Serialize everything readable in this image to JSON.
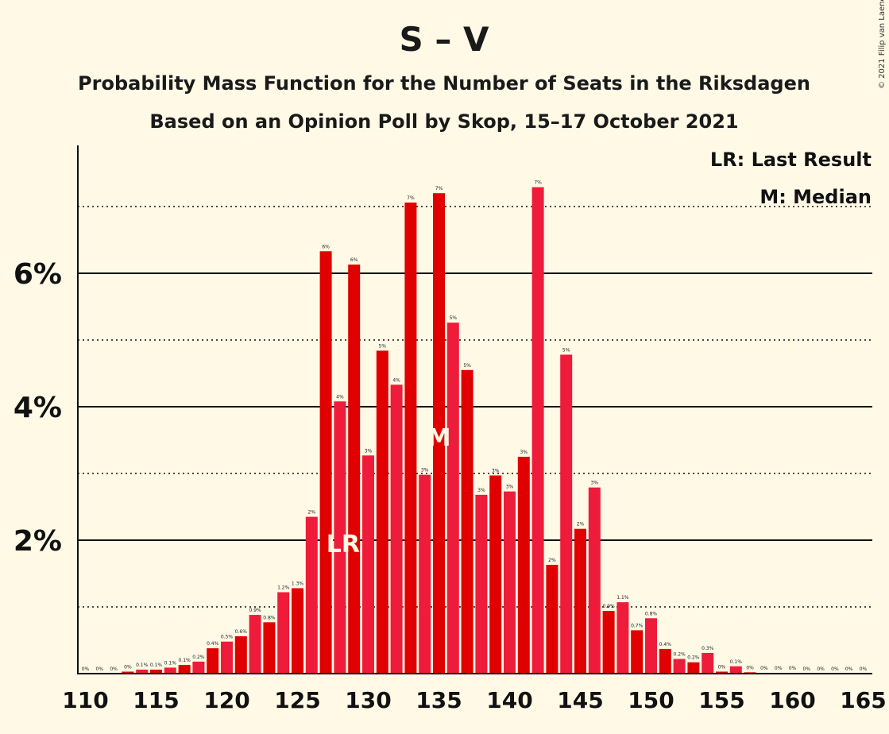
{
  "title": "S – V",
  "subtitle1": "Probability Mass Function for the Number of Seats in the Riksdagen",
  "subtitle2": "Based on an Opinion Poll by Skop, 15–17 October 2021",
  "copyright": "© 2021 Filip van Laenen",
  "legend": {
    "last_result": "LR: Last Result",
    "median": "M: Median"
  },
  "colors": {
    "background": "#FFF9E6",
    "bar_dark": "#E00000",
    "bar_light": "#EE1C3A"
  },
  "chart_data": {
    "type": "bar",
    "xlim": [
      110,
      165
    ],
    "ylim": [
      0,
      7.8
    ],
    "y_solid_gridlines": [
      2,
      4,
      6
    ],
    "y_dotted_gridlines": [
      1,
      3,
      5,
      7
    ],
    "y_tick_labels": [
      {
        "value": 2,
        "label": "2%"
      },
      {
        "value": 4,
        "label": "4%"
      },
      {
        "value": 6,
        "label": "6%"
      }
    ],
    "x_ticks": [
      110,
      115,
      120,
      125,
      130,
      135,
      140,
      145,
      150,
      155,
      160,
      165
    ],
    "categories": [
      110,
      111,
      112,
      113,
      114,
      115,
      116,
      117,
      118,
      119,
      120,
      121,
      122,
      123,
      124,
      125,
      126,
      127,
      128,
      129,
      130,
      131,
      132,
      133,
      134,
      135,
      136,
      137,
      138,
      139,
      140,
      141,
      142,
      143,
      144,
      145,
      146,
      147,
      148,
      149,
      150,
      151,
      152,
      153,
      154,
      155,
      156,
      157,
      158,
      159,
      160,
      161,
      162,
      163,
      164,
      165
    ],
    "values": [
      0,
      0,
      0,
      0.03,
      0.06,
      0.06,
      0.09,
      0.13,
      0.18,
      0.38,
      0.48,
      0.56,
      0.88,
      0.77,
      1.22,
      1.28,
      2.35,
      6.33,
      4.08,
      6.13,
      3.27,
      4.84,
      4.33,
      7.06,
      2.98,
      7.2,
      5.26,
      4.55,
      2.68,
      2.97,
      2.73,
      3.25,
      7.29,
      1.63,
      4.78,
      2.17,
      2.79,
      0.94,
      1.07,
      0.65,
      0.83,
      0.37,
      0.22,
      0.17,
      0.31,
      0.03,
      0.11,
      0.02,
      0.01,
      0.01,
      0.01,
      0,
      0,
      0,
      0,
      0
    ],
    "data_labels": [
      "0%",
      "0%",
      "0%",
      "0%",
      "0.1%",
      "0.1%",
      "0.1%",
      "0.1%",
      "0.2%",
      "0.4%",
      "0.5%",
      "0.6%",
      "0.9%",
      "0.8%",
      "1.2%",
      "1.3%",
      "2%",
      "6%",
      "4%",
      "6%",
      "3%",
      "5%",
      "4%",
      "7%",
      "3%",
      "7%",
      "5%",
      "5%",
      "3%",
      "3%",
      "3%",
      "3%",
      "7%",
      "2%",
      "5%",
      "2%",
      "3%",
      "0.9%",
      "1.1%",
      "0.7%",
      "0.8%",
      "0.4%",
      "0.2%",
      "0.2%",
      "0.3%",
      "0%",
      "0.1%",
      "0%",
      "0%",
      "0%",
      "0%",
      "0%",
      "0%",
      "0%",
      "0%",
      "0%"
    ],
    "last_result": {
      "seat": 128,
      "label": "LR"
    },
    "median": {
      "seat": 135,
      "label": "M"
    }
  }
}
